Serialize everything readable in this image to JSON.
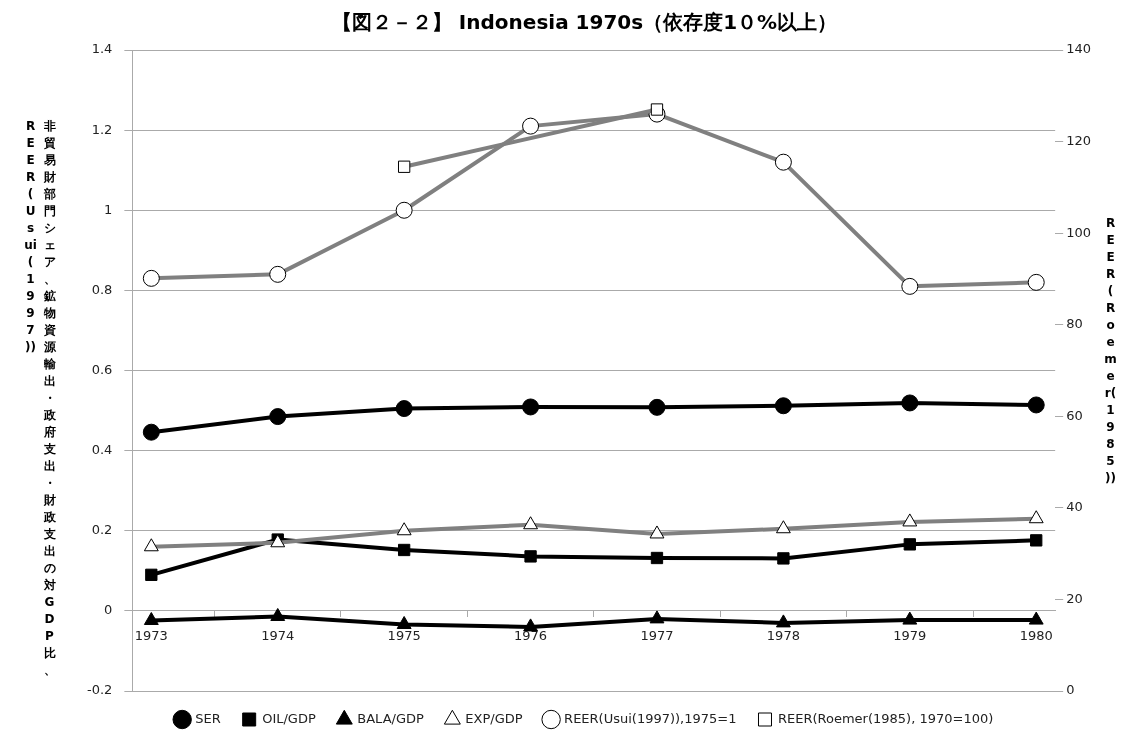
{
  "chart_data": {
    "type": "line",
    "title": "【図２－２】 Indonesia 1970s（依存度1０%以上）",
    "ylabel": "非貿易財部門シェア、鉱物資源輸出・政府支出・財政支出の対GDP比、REER(Usui(1997))",
    "y2label": "REER(Roemer(1985))",
    "categories": [
      "1973",
      "1974",
      "1975",
      "1976",
      "1977",
      "1978",
      "1979",
      "1980"
    ],
    "series": [
      {
        "name": "SER",
        "color": "#000000",
        "marker": "circle",
        "values": [
          0.446,
          0.485,
          0.505,
          0.509,
          0.508,
          0.512,
          0.519,
          0.514
        ]
      },
      {
        "name": "OIL/GDP",
        "color": "#000000",
        "marker": "square",
        "values": [
          0.09,
          0.178,
          0.152,
          0.136,
          0.132,
          0.131,
          0.166,
          0.176
        ]
      },
      {
        "name": "BALA/GDP",
        "color": "#000000",
        "marker": "triangle",
        "values": [
          -0.024,
          -0.014,
          -0.034,
          -0.04,
          -0.02,
          -0.03,
          -0.023,
          -0.023
        ]
      },
      {
        "name": "EXP/GDP",
        "color": "#808080",
        "marker": "triangle",
        "values": [
          0.16,
          0.17,
          0.2,
          0.215,
          0.192,
          0.205,
          0.222,
          0.23
        ]
      },
      {
        "name": "REER(Usui(1997)),1975=1",
        "color": "#808080",
        "marker": "circle",
        "values": [
          0.83,
          0.84,
          1.0,
          1.21,
          1.24,
          1.12,
          0.81,
          0.82
        ]
      },
      {
        "name": "REER(Roemer(1985), 1970=100)",
        "color": "#808080",
        "marker": "square",
        "axis": "y2",
        "values": [
          null,
          null,
          114.5,
          null,
          127,
          null,
          null,
          null
        ]
      }
    ],
    "ylim": [
      -0.2,
      1.4
    ],
    "yticks": [
      -0.2,
      0,
      0.2,
      0.4,
      0.6,
      0.8,
      1,
      1.2,
      1.4
    ],
    "y2lim": [
      0,
      140
    ],
    "y2ticks": [
      0,
      20,
      40,
      60,
      80,
      100,
      120,
      140
    ],
    "grid": "y",
    "legend": "bottom"
  }
}
